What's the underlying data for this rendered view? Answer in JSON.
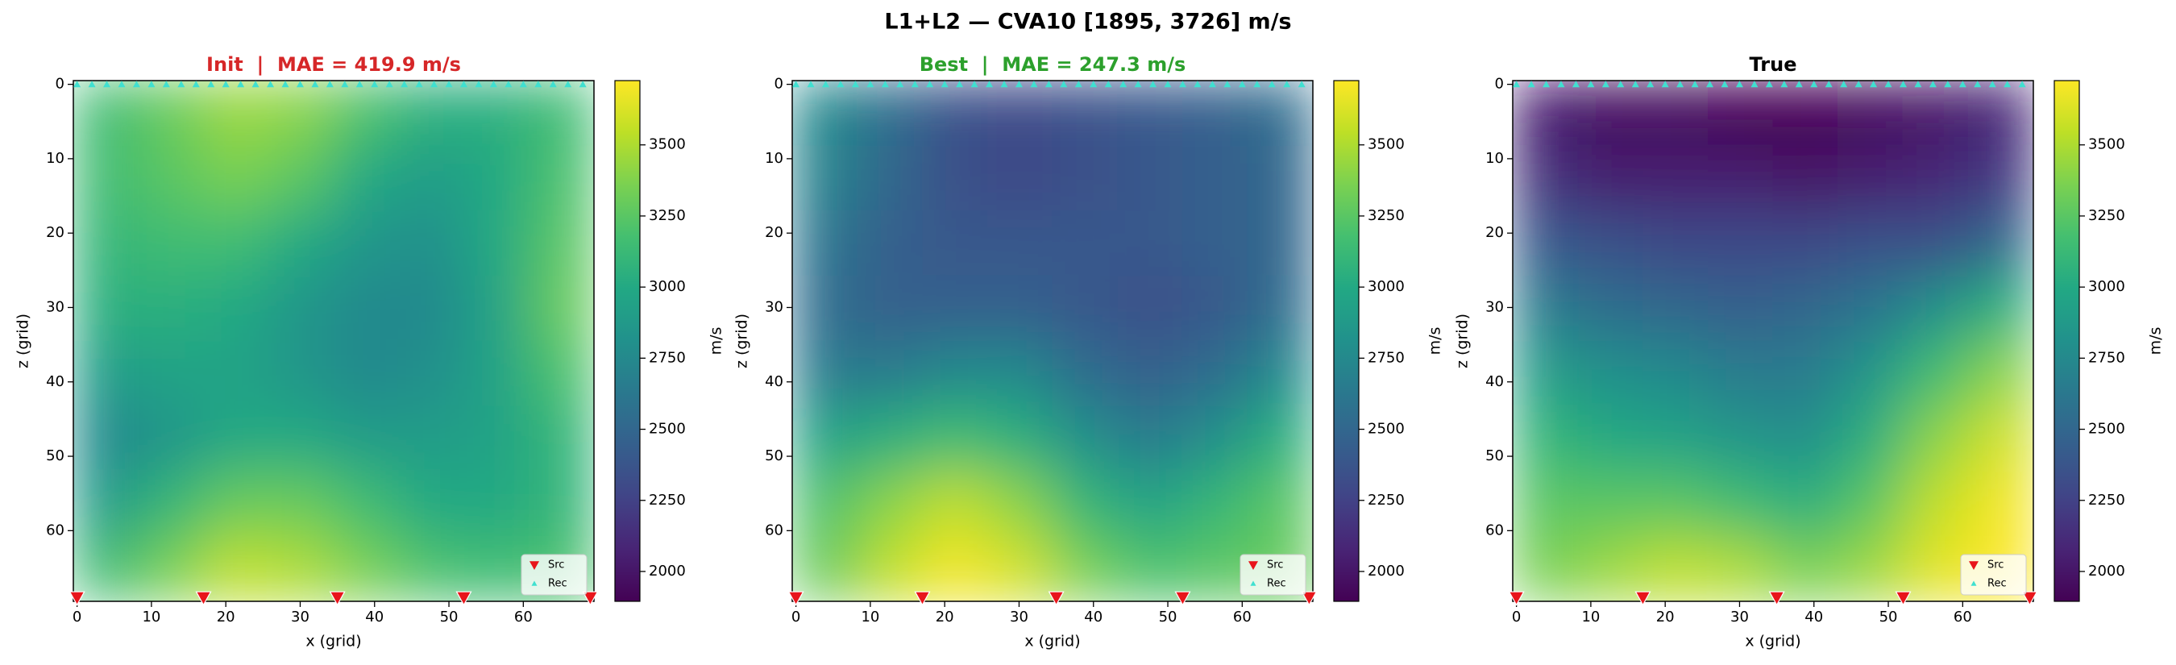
{
  "title": "L1+L2 — CVA10 [1895, 3726] m/s",
  "chart_data": [
    {
      "type": "heatmap",
      "title": "Init  |  MAE = 419.9 m/s",
      "title_color": "#d62728",
      "xlabel": "x (grid)",
      "ylabel": "z (grid)",
      "xlim": [
        -0.5,
        69.5
      ],
      "ylim": [
        69.5,
        -0.5
      ],
      "xticks": [
        0,
        10,
        20,
        30,
        40,
        50,
        60
      ],
      "yticks": [
        0,
        10,
        20,
        30,
        40,
        50,
        60
      ],
      "colormap": "viridis",
      "clim": [
        1895,
        3726
      ],
      "colorbar_label": "m/s",
      "colorbar_ticks": [
        2000,
        2250,
        2500,
        2750,
        3000,
        3250,
        3500
      ],
      "z": [
        [
          3150,
          3300,
          3450,
          3400,
          3200,
          3050,
          3050,
          3150
        ],
        [
          3150,
          3250,
          3350,
          3250,
          3000,
          2900,
          3000,
          3200
        ],
        [
          3100,
          3150,
          3150,
          3000,
          2850,
          2800,
          3000,
          3250
        ],
        [
          3050,
          3050,
          3000,
          2850,
          2750,
          2750,
          2950,
          3300
        ],
        [
          2900,
          2950,
          2950,
          2850,
          2750,
          2800,
          2950,
          3200
        ],
        [
          2750,
          2850,
          3000,
          3000,
          2900,
          2900,
          2950,
          3100
        ],
        [
          2900,
          3100,
          3300,
          3300,
          3150,
          3000,
          3000,
          3100
        ],
        [
          3150,
          3350,
          3550,
          3500,
          3350,
          3200,
          3150,
          3200
        ]
      ],
      "legend": "lower right",
      "series": [
        {
          "name": "Src",
          "color": "#e8151b",
          "x": [
            0,
            17,
            35,
            52,
            69
          ],
          "values": [
            69,
            69,
            69,
            69,
            69
          ]
        },
        {
          "name": "Rec",
          "color": "#40e0d0",
          "x": [
            0,
            2,
            4,
            6,
            8,
            10,
            12,
            14,
            16,
            18,
            20,
            22,
            24,
            26,
            28,
            30,
            32,
            34,
            36,
            38,
            40,
            42,
            44,
            46,
            48,
            50,
            52,
            54,
            56,
            58,
            60,
            62,
            64,
            66,
            68
          ],
          "values": [
            0,
            0,
            0,
            0,
            0,
            0,
            0,
            0,
            0,
            0,
            0,
            0,
            0,
            0,
            0,
            0,
            0,
            0,
            0,
            0,
            0,
            0,
            0,
            0,
            0,
            0,
            0,
            0,
            0,
            0,
            0,
            0,
            0,
            0,
            0
          ]
        }
      ]
    },
    {
      "type": "heatmap",
      "title": "Best  |  MAE = 247.3 m/s",
      "title_color": "#2ca02c",
      "xlabel": "x (grid)",
      "ylabel": "z (grid)",
      "xlim": [
        -0.5,
        69.5
      ],
      "ylim": [
        69.5,
        -0.5
      ],
      "xticks": [
        0,
        10,
        20,
        30,
        40,
        50,
        60
      ],
      "yticks": [
        0,
        10,
        20,
        30,
        40,
        50,
        60
      ],
      "colormap": "viridis",
      "clim": [
        1895,
        3726
      ],
      "colorbar_label": "m/s",
      "colorbar_ticks": [
        2000,
        2250,
        2500,
        2750,
        3000,
        3250,
        3500
      ],
      "z": [
        [
          2750,
          2550,
          2350,
          2300,
          2350,
          2400,
          2450,
          2550
        ],
        [
          2700,
          2500,
          2350,
          2300,
          2350,
          2400,
          2450,
          2500
        ],
        [
          2600,
          2450,
          2400,
          2400,
          2400,
          2400,
          2450,
          2500
        ],
        [
          2550,
          2450,
          2450,
          2450,
          2400,
          2350,
          2400,
          2550
        ],
        [
          2650,
          2650,
          2750,
          2750,
          2550,
          2450,
          2550,
          2750
        ],
        [
          2950,
          3050,
          3150,
          3050,
          2800,
          2650,
          2800,
          3050
        ],
        [
          3200,
          3400,
          3550,
          3400,
          3100,
          2950,
          3100,
          3250
        ],
        [
          3300,
          3550,
          3700,
          3600,
          3350,
          3200,
          3250,
          3300
        ]
      ],
      "legend": "lower right",
      "series": [
        {
          "name": "Src",
          "color": "#e8151b",
          "x": [
            0,
            17,
            35,
            52,
            69
          ],
          "values": [
            69,
            69,
            69,
            69,
            69
          ]
        },
        {
          "name": "Rec",
          "color": "#40e0d0",
          "x": [
            0,
            2,
            4,
            6,
            8,
            10,
            12,
            14,
            16,
            18,
            20,
            22,
            24,
            26,
            28,
            30,
            32,
            34,
            36,
            38,
            40,
            42,
            44,
            46,
            48,
            50,
            52,
            54,
            56,
            58,
            60,
            62,
            64,
            66,
            68
          ],
          "values": [
            0,
            0,
            0,
            0,
            0,
            0,
            0,
            0,
            0,
            0,
            0,
            0,
            0,
            0,
            0,
            0,
            0,
            0,
            0,
            0,
            0,
            0,
            0,
            0,
            0,
            0,
            0,
            0,
            0,
            0,
            0,
            0,
            0,
            0,
            0
          ]
        }
      ]
    },
    {
      "type": "heatmap",
      "title": "True",
      "title_color": "#000000",
      "xlabel": "x (grid)",
      "ylabel": "z (grid)",
      "xlim": [
        -0.5,
        69.5
      ],
      "ylim": [
        69.5,
        -0.5
      ],
      "xticks": [
        0,
        10,
        20,
        30,
        40,
        50,
        60
      ],
      "yticks": [
        0,
        10,
        20,
        30,
        40,
        50,
        60
      ],
      "colormap": "viridis",
      "clim": [
        1895,
        3726
      ],
      "colorbar_label": "m/s",
      "colorbar_ticks": [
        2000,
        2250,
        2500,
        2750,
        3000,
        3250,
        3500
      ],
      "z": [
        [
          2050,
          1950,
          1950,
          1900,
          1900,
          1950,
          2000,
          2100
        ],
        [
          2150,
          2050,
          2050,
          2050,
          2000,
          2050,
          2100,
          2200
        ],
        [
          2400,
          2350,
          2300,
          2300,
          2300,
          2350,
          2350,
          2500
        ],
        [
          2650,
          2550,
          2500,
          2450,
          2500,
          2600,
          2800,
          3050
        ],
        [
          2900,
          2800,
          2750,
          2650,
          2650,
          2850,
          3150,
          3400
        ],
        [
          3100,
          3000,
          2950,
          2850,
          2800,
          3050,
          3400,
          3600
        ],
        [
          3250,
          3250,
          3250,
          3150,
          3050,
          3250,
          3550,
          3700
        ],
        [
          3350,
          3450,
          3550,
          3500,
          3350,
          3450,
          3650,
          3726
        ]
      ],
      "legend": "lower right",
      "series": [
        {
          "name": "Src",
          "color": "#e8151b",
          "x": [
            0,
            17,
            35,
            52,
            69
          ],
          "values": [
            69,
            69,
            69,
            69,
            69
          ]
        },
        {
          "name": "Rec",
          "color": "#40e0d0",
          "x": [
            0,
            2,
            4,
            6,
            8,
            10,
            12,
            14,
            16,
            18,
            20,
            22,
            24,
            26,
            28,
            30,
            32,
            34,
            36,
            38,
            40,
            42,
            44,
            46,
            48,
            50,
            52,
            54,
            56,
            58,
            60,
            62,
            64,
            66,
            68
          ],
          "values": [
            0,
            0,
            0,
            0,
            0,
            0,
            0,
            0,
            0,
            0,
            0,
            0,
            0,
            0,
            0,
            0,
            0,
            0,
            0,
            0,
            0,
            0,
            0,
            0,
            0,
            0,
            0,
            0,
            0,
            0,
            0,
            0,
            0,
            0,
            0
          ]
        }
      ]
    }
  ]
}
